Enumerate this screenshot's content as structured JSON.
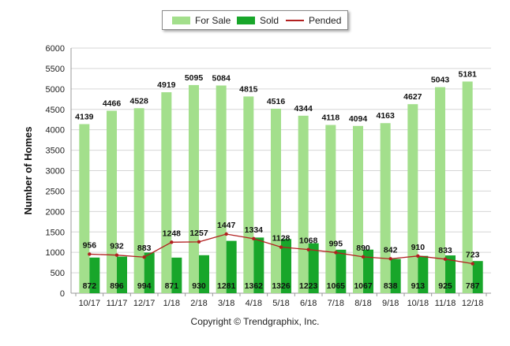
{
  "chart_data": {
    "type": "bar",
    "ylabel": "Number of Homes",
    "xlabel": "",
    "ylim": [
      0,
      6000
    ],
    "yticks": [
      "0",
      "500",
      "1000",
      "1500",
      "2000",
      "2500",
      "3000",
      "3500",
      "4000",
      "4500",
      "5000",
      "5500",
      "6000"
    ],
    "grid": true,
    "legend_position": "top-center",
    "categories": [
      "10/17",
      "11/17",
      "12/17",
      "1/18",
      "2/18",
      "3/18",
      "4/18",
      "5/18",
      "6/18",
      "7/18",
      "8/18",
      "9/18",
      "10/18",
      "11/18",
      "12/18"
    ],
    "series": [
      {
        "name": "For Sale",
        "kind": "bar",
        "color": "#a3df8c",
        "values": [
          4139,
          4466,
          4528,
          4919,
          5095,
          5084,
          4815,
          4516,
          4344,
          4118,
          4094,
          4163,
          4627,
          5043,
          5181
        ]
      },
      {
        "name": "Sold",
        "kind": "bar",
        "color": "#18a62a",
        "values": [
          872,
          896,
          994,
          871,
          930,
          1281,
          1362,
          1326,
          1223,
          1065,
          1067,
          838,
          913,
          925,
          787
        ]
      },
      {
        "name": "Pended",
        "kind": "line",
        "color": "#b22020",
        "values": [
          956,
          932,
          883,
          1248,
          1257,
          1447,
          1334,
          1128,
          1068,
          995,
          890,
          842,
          910,
          833,
          723
        ]
      }
    ]
  },
  "legend": {
    "for_sale": "For Sale",
    "sold": "Sold",
    "pended": "Pended"
  },
  "footer": {
    "copyright": "Copyright © Trendgraphix, Inc."
  }
}
